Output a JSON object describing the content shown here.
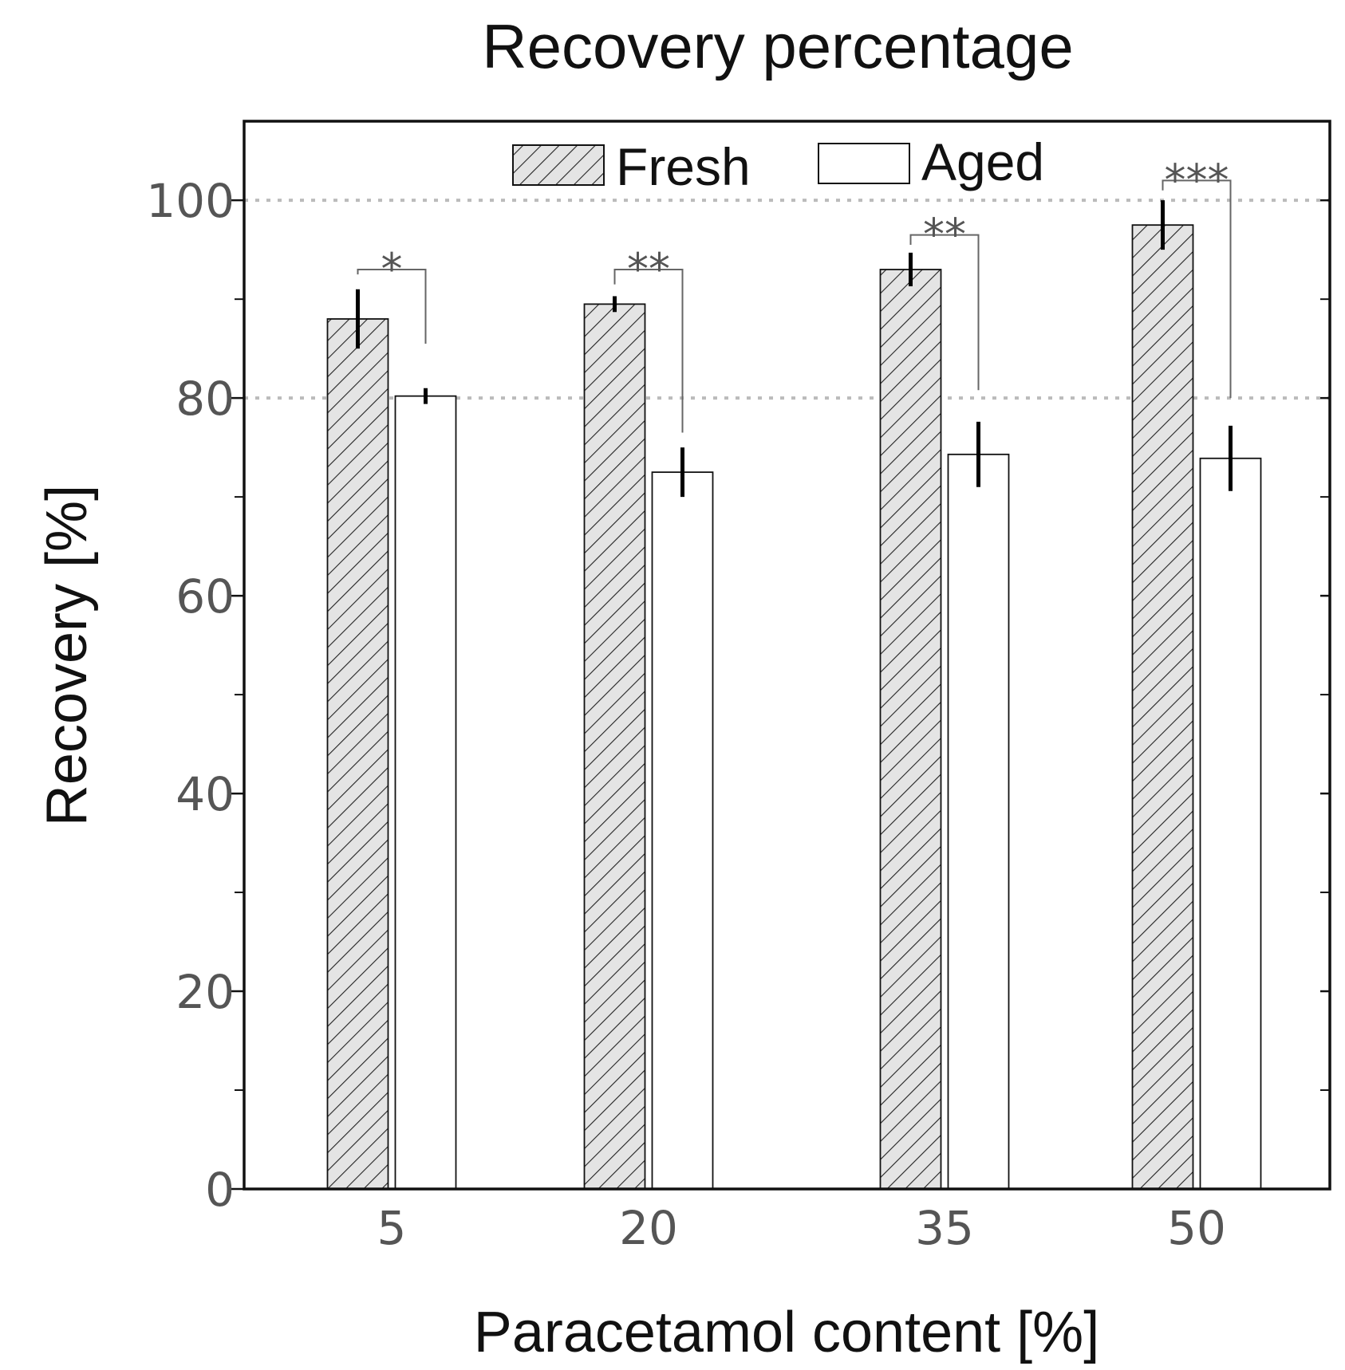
{
  "colors": {
    "fresh_fill": "#e4e4e4",
    "hatch": "#222222",
    "aged_fill": "#ffffff",
    "axis": "#111111",
    "grid": "#bbbbbb",
    "tick_text": "#555555",
    "bracket": "#666666"
  },
  "chart_data": {
    "type": "bar",
    "title": "Recovery percentage",
    "xlabel": "Paracetamol content [%]",
    "ylabel": "Recovery [%]",
    "categories": [
      "5",
      "20",
      "35",
      "50"
    ],
    "ylim": [
      0,
      108
    ],
    "yticks": [
      0,
      20,
      40,
      60,
      80,
      100
    ],
    "yminor_ticks": [
      10,
      30,
      50,
      70,
      90
    ],
    "gridlines": [
      80,
      100
    ],
    "legend_position": "top-center",
    "series": [
      {
        "name": "Fresh",
        "pattern": "hatched",
        "values": [
          88.0,
          89.5,
          93.0,
          97.5
        ],
        "errors": [
          3.0,
          0.8,
          1.7,
          2.5
        ]
      },
      {
        "name": "Aged",
        "pattern": "white",
        "values": [
          80.2,
          72.5,
          74.3,
          73.9
        ],
        "errors": [
          0.8,
          2.5,
          3.3,
          3.3
        ]
      }
    ],
    "significance": [
      {
        "category": "5",
        "label": "*",
        "level": 93.0,
        "fresh_drop": 92.5,
        "aged_drop": 85.5
      },
      {
        "category": "20",
        "label": "**",
        "level": 93.0,
        "fresh_drop": 91.5,
        "aged_drop": 76.5
      },
      {
        "category": "35",
        "label": "**",
        "level": 96.5,
        "fresh_drop": 95.5,
        "aged_drop": 80.8
      },
      {
        "category": "50",
        "label": "***",
        "level": 102.0,
        "fresh_drop": 101.0,
        "aged_drop": 80.0
      }
    ]
  }
}
